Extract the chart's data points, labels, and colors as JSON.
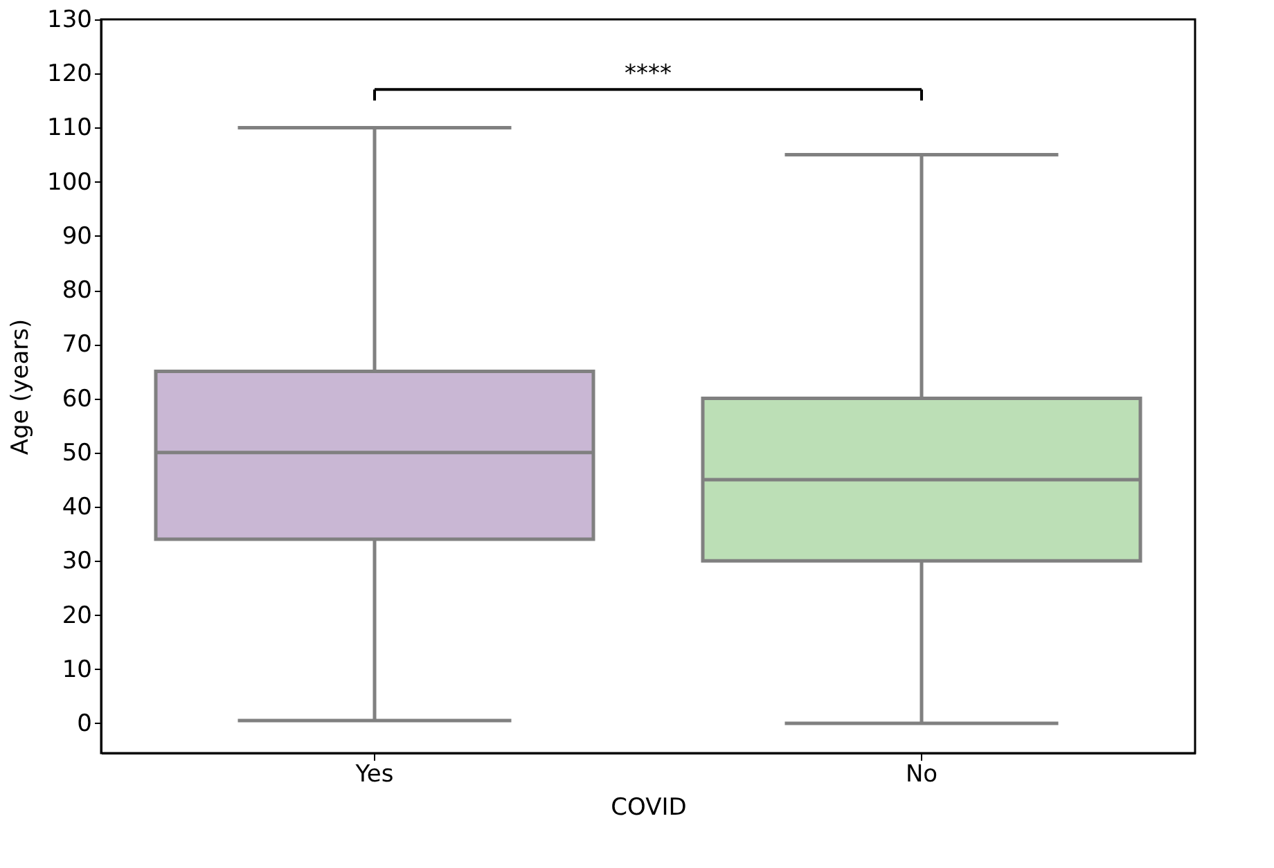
{
  "chart_data": {
    "type": "box",
    "xlabel": "COVID",
    "ylabel": "Age (years)",
    "categories": [
      "Yes",
      "No"
    ],
    "boxes": [
      {
        "low": 0.5,
        "q1": 34,
        "median": 50,
        "q3": 65,
        "high": 110
      },
      {
        "low": 0,
        "q1": 30,
        "median": 45,
        "q3": 60,
        "high": 105
      }
    ],
    "colors": [
      "#c9b7d4",
      "#bcdfb6"
    ],
    "ylim": [
      -5.5,
      130
    ],
    "yticks": [
      0,
      10,
      20,
      30,
      40,
      50,
      60,
      70,
      80,
      90,
      100,
      110,
      120,
      130
    ],
    "grid": false,
    "annotations": [
      "****"
    ]
  }
}
